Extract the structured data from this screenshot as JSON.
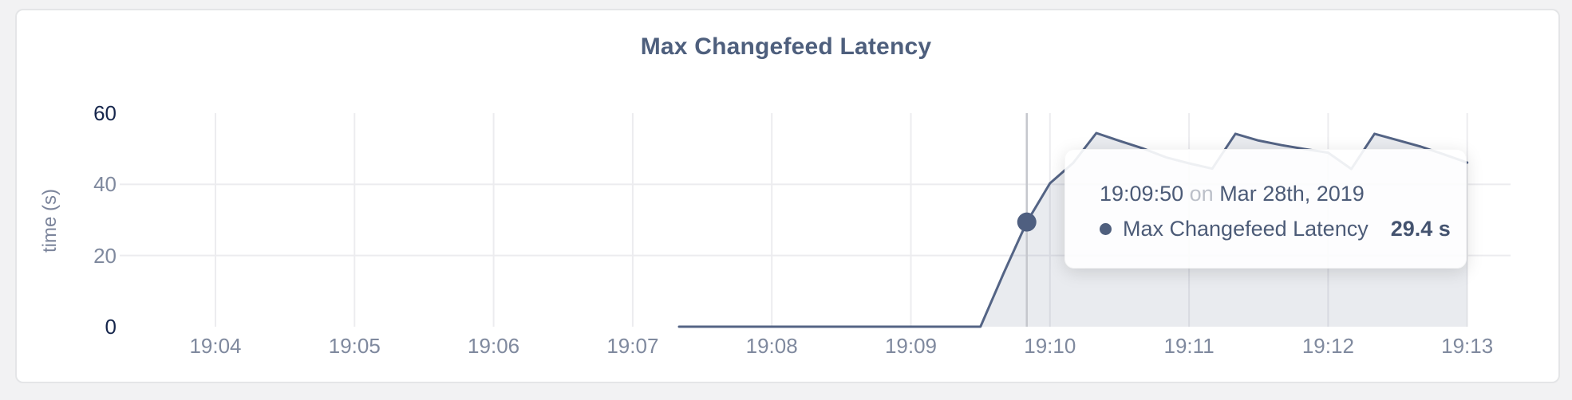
{
  "card": {
    "background": "#ffffff",
    "border_color": "#e4e5e7"
  },
  "chart_data": {
    "type": "area",
    "title": "Max Changefeed Latency",
    "ylabel": "time (s)",
    "xlabel": "",
    "ylim": [
      0,
      60
    ],
    "legend_position": "none",
    "grid": {
      "horizontal_at": [
        20,
        40
      ],
      "vertical": "every-minute-tick"
    },
    "x_ticks": [
      "19:04",
      "19:05",
      "19:06",
      "19:07",
      "19:08",
      "19:09",
      "19:10",
      "19:11",
      "19:12",
      "19:13"
    ],
    "y_ticks": [
      {
        "label": "0",
        "value": 0,
        "emphasis": true
      },
      {
        "label": "20",
        "value": 20,
        "emphasis": false
      },
      {
        "label": "40",
        "value": 40,
        "emphasis": false
      },
      {
        "label": "60",
        "value": 60,
        "emphasis": true
      }
    ],
    "series": [
      {
        "name": "Max Changefeed Latency",
        "color": "#546485",
        "fill": "rgba(84,100,133,0.13)",
        "points": [
          [
            "19:07:20",
            0
          ],
          [
            "19:09:30",
            0
          ],
          [
            "19:09:40",
            15
          ],
          [
            "19:09:50",
            29.4
          ],
          [
            "19:10:00",
            40.3
          ],
          [
            "19:10:10",
            46
          ],
          [
            "19:10:20",
            54.4
          ],
          [
            "19:10:30",
            52.2
          ],
          [
            "19:10:40",
            50.1
          ],
          [
            "19:10:50",
            47.6
          ],
          [
            "19:11:00",
            45.9
          ],
          [
            "19:11:10",
            44.4
          ],
          [
            "19:11:20",
            54.2
          ],
          [
            "19:11:30",
            52.3
          ],
          [
            "19:11:40",
            51.0
          ],
          [
            "19:11:50",
            49.9
          ],
          [
            "19:12:00",
            48.9
          ],
          [
            "19:12:10",
            44.3
          ],
          [
            "19:12:20",
            54.2
          ],
          [
            "19:12:30",
            52.4
          ],
          [
            "19:12:40",
            50.6
          ],
          [
            "19:12:50",
            48.4
          ],
          [
            "19:13:00",
            46.1
          ]
        ]
      }
    ],
    "hover": {
      "time": "19:09:50",
      "conj": "on",
      "date": "Mar 28th, 2019",
      "series": "Max Changefeed Latency",
      "value": 29.4,
      "value_text": "29.4 s",
      "crosshair_color": "#c5c7cd",
      "dot_color": "#4f5f80"
    },
    "colors": {
      "gridline": "#ececef",
      "tick_gray": "#7f899e",
      "tick_dark": "#16264c",
      "title": "#4e5f7d"
    }
  }
}
